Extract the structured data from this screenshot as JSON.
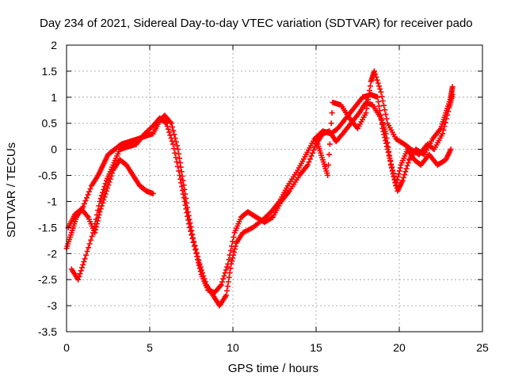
{
  "chart_data": {
    "type": "scatter",
    "title": "Day 234 of 2021, Sidereal Day-to-day VTEC variation (SDTVAR) for receiver pado",
    "xlabel": "GPS time / hours",
    "ylabel": "SDTVAR / TECUs",
    "xlim": [
      0,
      25
    ],
    "ylim": [
      -3.5,
      2
    ],
    "x_ticks": [
      0,
      5,
      10,
      15,
      20,
      25
    ],
    "y_ticks": [
      -3.5,
      -3,
      -2.5,
      -2,
      -1.5,
      -1,
      -0.5,
      0,
      0.5,
      1,
      1.5,
      2
    ],
    "grid": true,
    "marker": "+",
    "color": "#ff0000",
    "series": [
      {
        "name": "track-1",
        "points": [
          [
            0.0,
            -1.9
          ],
          [
            0.3,
            -1.6
          ],
          [
            0.6,
            -1.3
          ],
          [
            1.0,
            -1.1
          ],
          [
            1.5,
            -0.7
          ],
          [
            1.9,
            -0.5
          ],
          [
            2.2,
            -0.3
          ],
          [
            2.5,
            -0.1
          ],
          [
            2.9,
            0.0
          ],
          [
            3.3,
            0.1
          ],
          [
            3.8,
            0.15
          ],
          [
            4.3,
            0.2
          ],
          [
            4.7,
            0.25
          ],
          [
            5.2,
            0.3
          ],
          [
            5.6,
            0.55
          ],
          [
            5.9,
            0.65
          ],
          [
            6.3,
            0.5
          ],
          [
            6.7,
            0.0
          ],
          [
            7.0,
            -0.6
          ],
          [
            7.3,
            -1.2
          ],
          [
            7.6,
            -1.7
          ],
          [
            8.0,
            -2.2
          ],
          [
            8.4,
            -2.6
          ],
          [
            8.8,
            -2.8
          ],
          [
            9.2,
            -3.0
          ],
          [
            9.6,
            -2.8
          ],
          [
            9.9,
            -2.2
          ],
          [
            10.2,
            -1.8
          ],
          [
            10.6,
            -1.6
          ],
          [
            11.2,
            -1.5
          ],
          [
            11.8,
            -1.35
          ],
          [
            12.3,
            -1.2
          ],
          [
            12.8,
            -1.0
          ],
          [
            13.3,
            -0.7
          ],
          [
            13.9,
            -0.4
          ],
          [
            14.4,
            -0.1
          ],
          [
            14.9,
            0.2
          ],
          [
            15.4,
            0.35
          ],
          [
            15.9,
            0.3
          ],
          [
            16.3,
            0.4
          ],
          [
            16.8,
            0.6
          ],
          [
            17.3,
            0.8
          ],
          [
            17.8,
            1.0
          ],
          [
            18.3,
            1.05
          ],
          [
            18.7,
            1.0
          ],
          [
            19.0,
            0.4
          ],
          [
            19.3,
            0.0
          ],
          [
            19.6,
            -0.4
          ],
          [
            19.9,
            -0.8
          ],
          [
            20.2,
            -0.6
          ],
          [
            20.6,
            -0.2
          ],
          [
            21.0,
            0.0
          ],
          [
            21.5,
            -0.1
          ],
          [
            22.0,
            0.2
          ],
          [
            22.5,
            0.4
          ],
          [
            22.8,
            0.7
          ],
          [
            23.1,
            1.0
          ],
          [
            23.2,
            1.2
          ]
        ]
      },
      {
        "name": "track-2",
        "points": [
          [
            0.3,
            -2.3
          ],
          [
            0.7,
            -2.5
          ],
          [
            1.1,
            -2.1
          ],
          [
            1.6,
            -1.6
          ],
          [
            2.0,
            -1.0
          ],
          [
            2.4,
            -0.6
          ],
          [
            2.8,
            -0.3
          ],
          [
            3.2,
            0.0
          ],
          [
            3.7,
            0.05
          ],
          [
            4.2,
            0.1
          ],
          [
            4.7,
            0.3
          ],
          [
            5.2,
            0.45
          ],
          [
            5.6,
            0.6
          ],
          [
            6.0,
            0.5
          ],
          [
            6.4,
            0.1
          ],
          [
            6.8,
            -0.5
          ],
          [
            7.1,
            -1.0
          ],
          [
            7.4,
            -1.5
          ],
          [
            7.8,
            -2.0
          ],
          [
            8.1,
            -2.4
          ],
          [
            8.5,
            -2.7
          ],
          [
            8.9,
            -2.75
          ],
          [
            9.3,
            -2.6
          ],
          [
            9.7,
            -2.2
          ],
          [
            10.1,
            -1.6
          ],
          [
            10.5,
            -1.3
          ],
          [
            10.9,
            -1.2
          ],
          [
            11.4,
            -1.3
          ],
          [
            11.9,
            -1.4
          ],
          [
            12.4,
            -1.3
          ],
          [
            12.9,
            -1.0
          ],
          [
            13.4,
            -0.8
          ],
          [
            14.0,
            -0.5
          ],
          [
            14.5,
            -0.3
          ],
          [
            15.0,
            0.1
          ],
          [
            15.4,
            0.3
          ],
          [
            15.8,
            0.35
          ],
          [
            16.2,
            0.15
          ],
          [
            16.6,
            0.3
          ],
          [
            17.1,
            0.5
          ],
          [
            17.6,
            0.7
          ],
          [
            18.0,
            0.9
          ],
          [
            18.4,
            0.85
          ],
          [
            18.9,
            0.6
          ],
          [
            19.2,
            0.3
          ],
          [
            19.5,
            -0.3
          ],
          [
            19.8,
            -0.7
          ],
          [
            20.1,
            -0.3
          ],
          [
            20.5,
            0.0
          ],
          [
            20.9,
            -0.2
          ],
          [
            21.3,
            -0.3
          ],
          [
            21.8,
            -0.1
          ],
          [
            22.3,
            -0.3
          ],
          [
            22.8,
            -0.2
          ],
          [
            23.1,
            0.0
          ]
        ]
      },
      {
        "name": "track-3",
        "points": [
          [
            0.1,
            -1.5
          ],
          [
            0.5,
            -1.25
          ],
          [
            0.9,
            -1.15
          ],
          [
            1.3,
            -1.3
          ],
          [
            1.7,
            -1.6
          ],
          [
            2.0,
            -1.2
          ],
          [
            2.4,
            -0.8
          ],
          [
            2.8,
            -0.4
          ],
          [
            3.2,
            -0.2
          ],
          [
            3.6,
            -0.3
          ],
          [
            4.0,
            -0.5
          ],
          [
            4.4,
            -0.7
          ],
          [
            4.8,
            -0.8
          ],
          [
            5.2,
            -0.85
          ]
        ]
      },
      {
        "name": "track-4",
        "points": [
          [
            15.1,
            0.1
          ],
          [
            15.4,
            -0.2
          ],
          [
            15.7,
            -0.5
          ],
          [
            16.0,
            0.9
          ],
          [
            16.5,
            0.85
          ],
          [
            17.0,
            0.6
          ],
          [
            17.5,
            0.4
          ],
          [
            18.0,
            0.7
          ],
          [
            18.3,
            1.3
          ],
          [
            18.5,
            1.5
          ],
          [
            18.9,
            1.1
          ],
          [
            19.3,
            0.5
          ],
          [
            19.8,
            0.2
          ],
          [
            20.3,
            0.1
          ],
          [
            20.7,
            0.0
          ],
          [
            21.2,
            -0.1
          ],
          [
            21.7,
            0.1
          ],
          [
            22.1,
            0.0
          ],
          [
            22.6,
            0.3
          ],
          [
            23.0,
            0.8
          ],
          [
            23.2,
            1.05
          ]
        ]
      }
    ]
  }
}
